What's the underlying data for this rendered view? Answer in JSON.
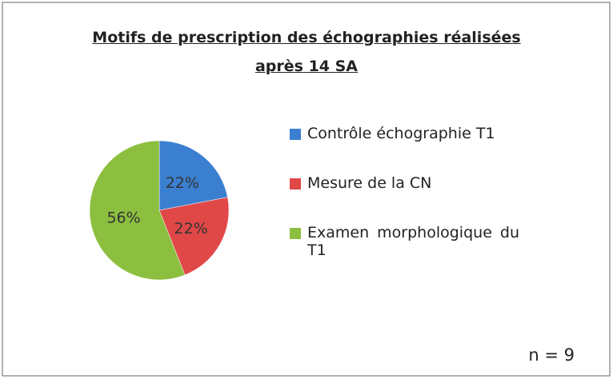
{
  "chart_data": {
    "type": "pie",
    "title": [
      "Motifs de prescription des échographies réalisées",
      "après 14 SA"
    ],
    "categories": [
      "Contrôle échographie T1",
      "Mesure de la CN",
      "Examen morphologique du T1"
    ],
    "values": [
      22,
      22,
      56
    ],
    "value_labels": [
      "22%",
      "22%",
      "56%"
    ],
    "colors": [
      "#3b7fd1",
      "#e04848",
      "#8cbf3f"
    ],
    "legend": "right",
    "annotation": "n = 9"
  }
}
